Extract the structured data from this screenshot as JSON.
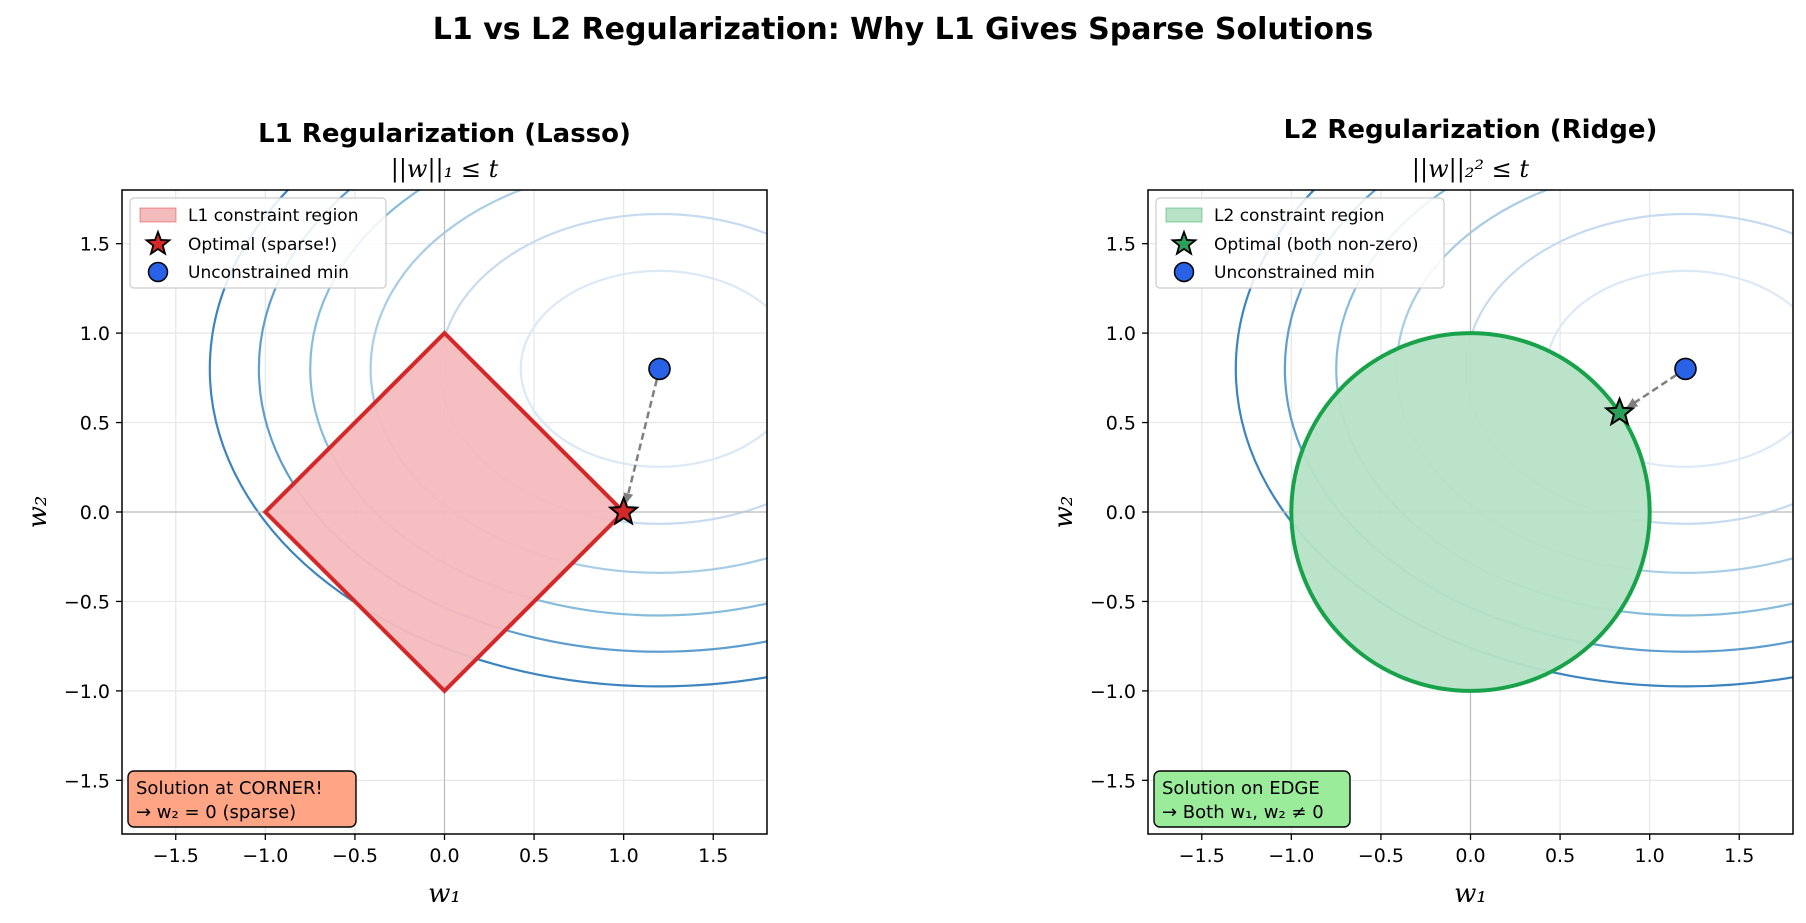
{
  "suptitle": "L1 vs L2 Regularization: Why L1 Gives Sparse Solutions",
  "chart_data": [
    {
      "type": "scatter",
      "title": "L1 Regularization (Lasso)",
      "subtitle": "||w||₁ ≤ t",
      "xlabel": "w₁",
      "ylabel": "w₂",
      "xlim": [
        -1.8,
        1.8
      ],
      "ylim": [
        -1.8,
        1.8
      ],
      "xticks": [
        -1.5,
        -1.0,
        -0.5,
        0.0,
        0.5,
        1.0,
        1.5
      ],
      "yticks": [
        -1.5,
        -1.0,
        -0.5,
        0.0,
        0.5,
        1.0,
        1.5
      ],
      "grid": true,
      "legend_position": "top-left",
      "constraint": {
        "shape": "diamond",
        "radius": 1.0,
        "fill": "#f4bbbd",
        "edge": "#d62728"
      },
      "unconstrained_min": [
        1.2,
        0.8
      ],
      "optimal": [
        1.0,
        0.0
      ],
      "optimal_color": "#d62728",
      "contour_center": [
        1.2,
        0.8
      ],
      "contour_scale": [
        1.0,
        2.0
      ],
      "contour_levels": [
        0.6,
        1.5,
        2.6,
        3.8,
        5.0,
        6.3
      ],
      "legend": [
        "L1 constraint region",
        "Optimal (sparse!)",
        "Unconstrained min"
      ],
      "annotation": {
        "lines": [
          "Solution at CORNER!",
          "→ w₂ = 0 (sparse)"
        ],
        "bg": "#ffa585"
      }
    },
    {
      "type": "scatter",
      "title": "L2 Regularization (Ridge)",
      "subtitle": "||w||₂² ≤ t",
      "xlabel": "w₁",
      "ylabel": "w₂",
      "xlim": [
        -1.8,
        1.8
      ],
      "ylim": [
        -1.8,
        1.8
      ],
      "xticks": [
        -1.5,
        -1.0,
        -0.5,
        0.0,
        0.5,
        1.0,
        1.5
      ],
      "yticks": [
        -1.5,
        -1.0,
        -0.5,
        0.0,
        0.5,
        1.0,
        1.5
      ],
      "grid": true,
      "legend_position": "top-left",
      "constraint": {
        "shape": "circle",
        "radius": 1.0,
        "fill": "#b7e2c6",
        "edge": "#18a24a"
      },
      "unconstrained_min": [
        1.2,
        0.8
      ],
      "optimal": [
        0.832,
        0.555
      ],
      "optimal_color": "#2ca05a",
      "contour_center": [
        1.2,
        0.8
      ],
      "contour_scale": [
        1.0,
        2.0
      ],
      "contour_levels": [
        0.6,
        1.5,
        2.6,
        3.8,
        5.0,
        6.3
      ],
      "legend": [
        "L2 constraint region",
        "Optimal (both non-zero)",
        "Unconstrained min"
      ],
      "annotation": {
        "lines": [
          "Solution on EDGE",
          "→ Both w₁, w₂ ≠ 0"
        ],
        "bg": "#9aeb9a"
      }
    }
  ]
}
